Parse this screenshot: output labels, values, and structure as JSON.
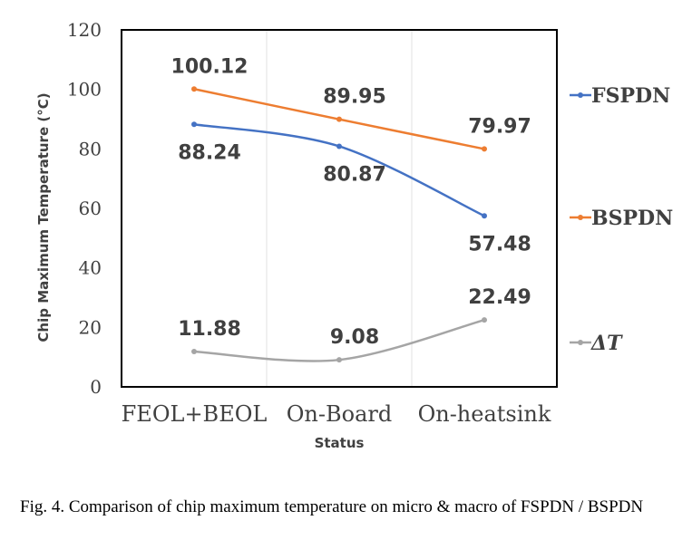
{
  "chart_data": {
    "type": "line",
    "categories": [
      "FEOL+BEOL",
      "On-Board",
      "On-heatsink"
    ],
    "xlabel": "Status",
    "ylabel": "Chip Maximum Temperature (°C)",
    "ylim": [
      0,
      120
    ],
    "yticks": [
      0,
      20,
      40,
      60,
      80,
      100,
      120
    ],
    "grid": "vertical",
    "legend_position": "right",
    "series": [
      {
        "name": "FSPDN",
        "values": [
          88.24,
          80.87,
          57.48
        ],
        "labels": [
          "88.24",
          "80.87",
          "57.48"
        ],
        "color": "#4472C4",
        "label_side": "below"
      },
      {
        "name": "BSPDN",
        "values": [
          100.12,
          89.95,
          79.97
        ],
        "labels": [
          "100.12",
          "89.95",
          "79.97"
        ],
        "color": "#ED7D31",
        "label_side": "above"
      },
      {
        "name": "ΔT",
        "values": [
          11.88,
          9.08,
          22.49
        ],
        "labels": [
          "11.88",
          "9.08",
          "22.49"
        ],
        "color": "#A5A5A5",
        "label_side": "above",
        "italic": true
      }
    ]
  },
  "caption": "Fig. 4.  Comparison of chip maximum temperature on micro & macro of FSPDN / BSPDN"
}
